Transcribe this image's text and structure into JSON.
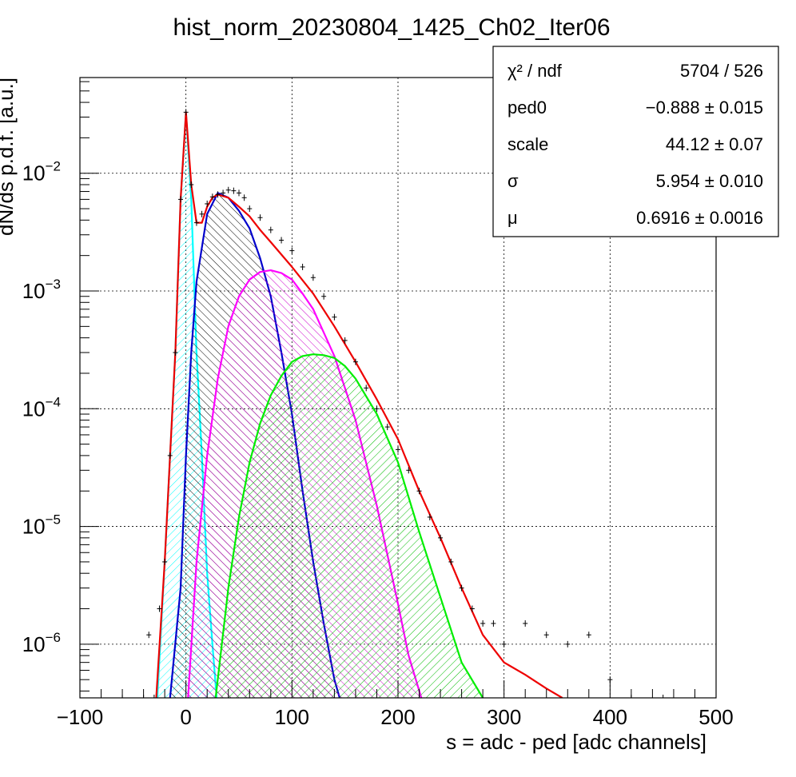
{
  "chart_data": {
    "type": "line",
    "title": "hist_norm_20230804_1425_Ch02_Iter06",
    "xlabel": "s = adc - ped [adc channels]",
    "ylabel": "dN/ds p.d.f. [a.u.]",
    "xlim": [
      -100,
      500
    ],
    "ylim": [
      3.5e-07,
      0.065
    ],
    "y_scale": "log",
    "grid": true,
    "x_ticks": [
      {
        "value": -100,
        "label": "−100"
      },
      {
        "value": 0,
        "label": "0"
      },
      {
        "value": 100,
        "label": "100"
      },
      {
        "value": 200,
        "label": "200"
      },
      {
        "value": 300,
        "label": "300"
      },
      {
        "value": 400,
        "label": "400"
      },
      {
        "value": 500,
        "label": "500"
      }
    ],
    "y_ticks": [
      {
        "value": 0.01,
        "base": "10",
        "exp": "−2"
      },
      {
        "value": 0.001,
        "base": "10",
        "exp": "−3"
      },
      {
        "value": 0.0001,
        "base": "10",
        "exp": "−4"
      },
      {
        "value": 1e-05,
        "base": "10",
        "exp": "−5"
      },
      {
        "value": 1e-06,
        "base": "10",
        "exp": "−6"
      }
    ],
    "stats_box": {
      "position": "top-right",
      "rows": [
        {
          "label": "χ² / ndf",
          "value": "5704 / 526"
        },
        {
          "label": "ped0",
          "value": "−0.888 ± 0.015"
        },
        {
          "label": "scale",
          "value": "44.12 ± 0.07"
        },
        {
          "label": "σ",
          "value": "5.954 ± 0.010"
        },
        {
          "label": "μ",
          "value": "0.6916 ± 0.0016"
        }
      ]
    },
    "series": [
      {
        "color": "#00ffff",
        "hatched": true,
        "x": [
          -27,
          -20,
          -15,
          -10,
          -5,
          0,
          5,
          10,
          15,
          20,
          25,
          29
        ],
        "y": [
          3.5e-07,
          5e-06,
          4e-05,
          0.0003,
          0.006,
          0.033,
          0.006,
          0.0003,
          4e-05,
          4e-06,
          1e-06,
          3.5e-07
        ]
      },
      {
        "color": "#0000cc",
        "hatched": true,
        "x": [
          -15,
          -5,
          0,
          5,
          10,
          20,
          30,
          40,
          50,
          60,
          70,
          80,
          90,
          100,
          110,
          120,
          130,
          140,
          145
        ],
        "y": [
          3.5e-07,
          3e-06,
          4e-05,
          0.0003,
          0.0012,
          0.0045,
          0.0068,
          0.0062,
          0.0048,
          0.0034,
          0.0019,
          0.0009,
          0.0003,
          9e-05,
          2e-05,
          5e-06,
          1.5e-06,
          5e-07,
          3.5e-07
        ]
      },
      {
        "color": "#ff00ff",
        "hatched": true,
        "x": [
          2,
          10,
          20,
          30,
          40,
          50,
          60,
          70,
          80,
          90,
          100,
          110,
          120,
          140,
          160,
          180,
          200,
          210,
          222
        ],
        "y": [
          3.5e-07,
          5e-06,
          4e-05,
          0.00018,
          0.0005,
          0.0009,
          0.00125,
          0.00145,
          0.0015,
          0.00142,
          0.00125,
          0.00095,
          0.0007,
          0.00028,
          8e-05,
          1.5e-05,
          2.2e-06,
          8e-07,
          3.5e-07
        ]
      },
      {
        "color": "#00ee00",
        "hatched": true,
        "x": [
          28,
          40,
          50,
          60,
          70,
          80,
          90,
          100,
          110,
          120,
          130,
          140,
          150,
          160,
          180,
          200,
          220,
          240,
          260,
          280
        ],
        "y": [
          3.5e-07,
          3e-06,
          1.2e-05,
          3.5e-05,
          7.5e-05,
          0.00013,
          0.00019,
          0.00025,
          0.00028,
          0.00029,
          0.000285,
          0.00027,
          0.00023,
          0.00018,
          9e-05,
          3.5e-05,
          9e-06,
          2.5e-06,
          7e-07,
          3.5e-07
        ]
      },
      {
        "color": "#ee0000",
        "hatched": false,
        "x": [
          -28,
          -20,
          -15,
          -10,
          -5,
          0,
          5,
          10,
          15,
          20,
          25,
          30,
          40,
          50,
          60,
          70,
          80,
          100,
          120,
          140,
          160,
          180,
          200,
          220,
          240,
          260,
          280,
          300,
          320,
          340,
          355
        ],
        "y": [
          3.5e-07,
          5e-06,
          4e-05,
          0.0003,
          0.006,
          0.033,
          0.008,
          0.0038,
          0.0038,
          0.0052,
          0.0062,
          0.0066,
          0.0062,
          0.0052,
          0.0043,
          0.0033,
          0.0026,
          0.0016,
          0.00095,
          0.0005,
          0.00025,
          0.00012,
          5.5e-05,
          2e-05,
          8e-06,
          3e-06,
          1.2e-06,
          7e-07,
          5.5e-07,
          4.2e-07,
          3.5e-07
        ]
      },
      {
        "color": "#000000",
        "hatched": false,
        "data_points": true,
        "x": [
          -60,
          -40,
          -35,
          -30,
          -25,
          -20,
          -15,
          -10,
          -5,
          0,
          5,
          10,
          15,
          20,
          25,
          30,
          35,
          40,
          45,
          50,
          55,
          60,
          70,
          80,
          90,
          100,
          110,
          120,
          130,
          140,
          150,
          160,
          170,
          180,
          190,
          200,
          210,
          220,
          230,
          240,
          250,
          260,
          270,
          280,
          290,
          300,
          320,
          340,
          360,
          380,
          400,
          420,
          450,
          480
        ],
        "y": [
          3.5e-07,
          3.5e-07,
          1.2e-06,
          3.5e-07,
          2e-06,
          5e-06,
          4e-05,
          0.0003,
          0.006,
          0.033,
          0.008,
          0.0038,
          0.0045,
          0.0055,
          0.0063,
          0.0066,
          0.0068,
          0.0072,
          0.0071,
          0.0068,
          0.0062,
          0.005,
          0.0042,
          0.0033,
          0.0027,
          0.0022,
          0.0016,
          0.0013,
          0.0009,
          0.0006,
          0.00038,
          0.00025,
          0.00015,
          0.0001,
          7e-05,
          4.5e-05,
          3e-05,
          2e-05,
          1.2e-05,
          8e-06,
          5e-06,
          3e-06,
          2e-06,
          1.5e-06,
          1.5e-06,
          1e-06,
          1.5e-06,
          1.2e-06,
          1e-06,
          1.2e-06,
          5e-07,
          3.5e-07,
          3.5e-07,
          3.5e-07
        ]
      }
    ]
  }
}
